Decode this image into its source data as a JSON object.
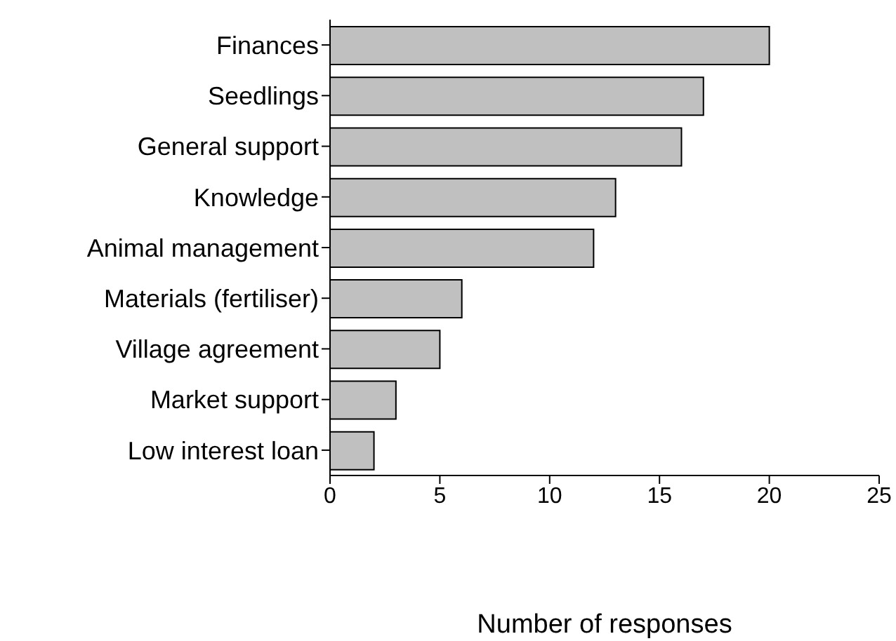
{
  "chart_data": {
    "type": "bar",
    "orientation": "horizontal",
    "xlabel": "Number of responses",
    "categories": [
      "Finances",
      "Seedlings",
      "General support",
      "Knowledge",
      "Animal management",
      "Materials (fertiliser)",
      "Village agreement",
      "Market support",
      "Low interest loan"
    ],
    "values": [
      20,
      17,
      16,
      13,
      12,
      6,
      5,
      3,
      2
    ],
    "color": "#c0c0c0",
    "xlim": [
      0,
      25
    ],
    "xticks": [
      0,
      5,
      10,
      15,
      20,
      25
    ]
  }
}
